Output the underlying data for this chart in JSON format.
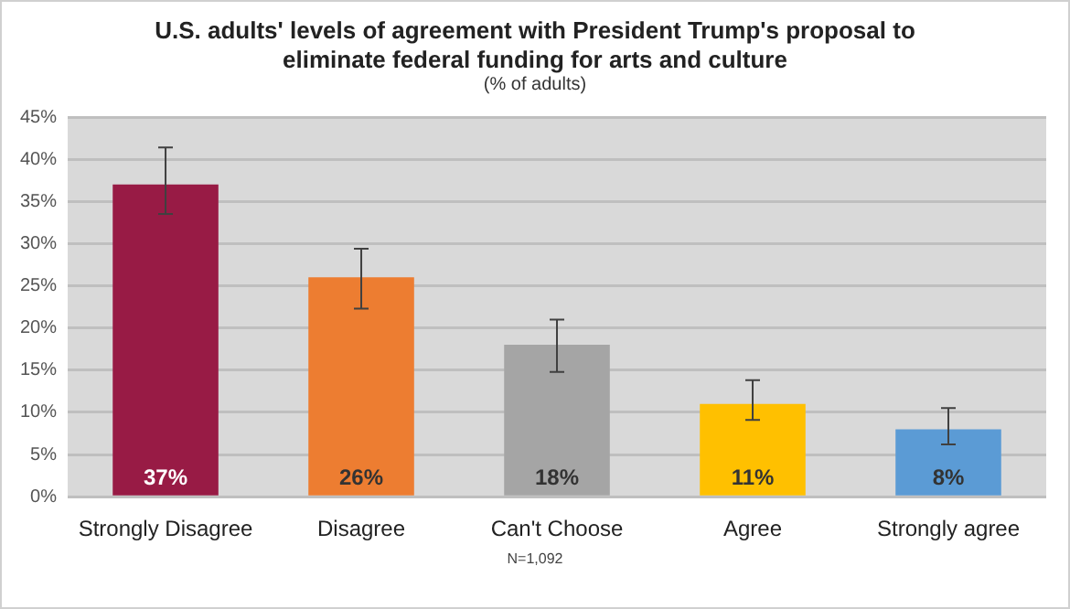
{
  "chart_data": {
    "type": "bar",
    "title": "U.S. adults' levels of agreement with President Trump's proposal to eliminate federal funding for arts and culture",
    "subtitle": "(% of adults)",
    "categories": [
      "Strongly Disagree",
      "Disagree",
      "Can't Choose",
      "Agree",
      "Strongly agree"
    ],
    "values": [
      37,
      26,
      18,
      11,
      8
    ],
    "colors": [
      "#981b45",
      "#ed7d31",
      "#a5a5a5",
      "#ffc000",
      "#5b9bd5"
    ],
    "errors": [
      [
        33.5,
        41.4
      ],
      [
        22.3,
        29.4
      ],
      [
        14.8,
        21
      ],
      [
        9.1,
        13.8
      ],
      [
        6.2,
        10.5
      ]
    ],
    "value_labels": [
      "37%",
      "26%",
      "18%",
      "11%",
      "8%"
    ],
    "ylim": [
      0,
      45
    ],
    "yticks": [
      {
        "value": 0,
        "label": "0%"
      },
      {
        "value": 5,
        "label": "5%"
      },
      {
        "value": 10,
        "label": "10%"
      },
      {
        "value": 15,
        "label": "15%"
      },
      {
        "value": 20,
        "label": "20%"
      },
      {
        "value": 25,
        "label": "25%"
      },
      {
        "value": 30,
        "label": "30%"
      },
      {
        "value": 35,
        "label": "35%"
      },
      {
        "value": 40,
        "label": "40%"
      },
      {
        "value": 45,
        "label": "45%"
      }
    ],
    "grid": "y",
    "legend": false,
    "annotations": [
      "N=1,092"
    ]
  }
}
